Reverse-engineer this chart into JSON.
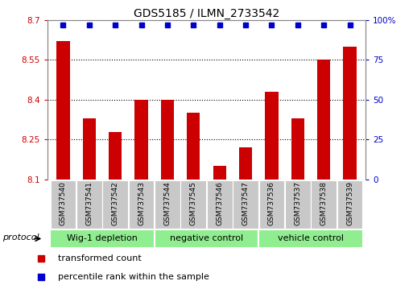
{
  "title": "GDS5185 / ILMN_2733542",
  "samples": [
    "GSM737540",
    "GSM737541",
    "GSM737542",
    "GSM737543",
    "GSM737544",
    "GSM737545",
    "GSM737546",
    "GSM737547",
    "GSM737536",
    "GSM737537",
    "GSM737538",
    "GSM737539"
  ],
  "red_values": [
    8.62,
    8.33,
    8.28,
    8.4,
    8.4,
    8.35,
    8.15,
    8.22,
    8.43,
    8.33,
    8.55,
    8.6
  ],
  "ylim_left": [
    8.1,
    8.7
  ],
  "ylim_right": [
    0,
    100
  ],
  "yticks_left": [
    8.1,
    8.25,
    8.4,
    8.55,
    8.7
  ],
  "yticks_right": [
    0,
    25,
    50,
    75,
    100
  ],
  "groups": [
    {
      "label": "Wig-1 depletion",
      "start": 0,
      "end": 4
    },
    {
      "label": "negative control",
      "start": 4,
      "end": 8
    },
    {
      "label": "vehicle control",
      "start": 8,
      "end": 12
    }
  ],
  "bar_color": "#CC0000",
  "blue_color": "#0000CC",
  "tick_color_left": "#CC0000",
  "tick_color_right": "#0000CC",
  "protocol_label": "protocol",
  "legend_red": "transformed count",
  "legend_blue": "percentile rank within the sample",
  "bar_width": 0.5,
  "blue_marker_size": 5,
  "cell_color": "#C8C8C8",
  "green_color": "#90EE90",
  "grid_linestyle": ":",
  "grid_linewidth": 0.8,
  "title_fontsize": 10,
  "tick_fontsize": 7.5,
  "label_fontsize": 7.5,
  "sample_fontsize": 6.5,
  "group_fontsize": 8,
  "legend_fontsize": 8
}
